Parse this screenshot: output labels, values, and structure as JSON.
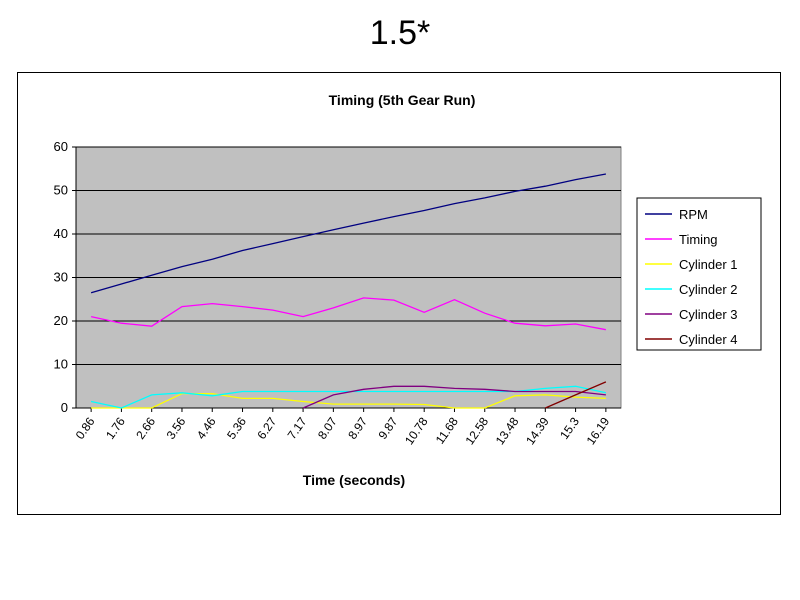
{
  "slide": {
    "title": "1.5*"
  },
  "chart_data": {
    "type": "line",
    "title": "Timing (5th Gear Run)",
    "xlabel": "Time (seconds)",
    "ylabel": "",
    "ylim": [
      0,
      60
    ],
    "yticks": [
      0,
      10,
      20,
      30,
      40,
      50,
      60
    ],
    "grid": true,
    "legend_position": "right",
    "plot_background": "#c0c0c0",
    "x": [
      "0.86",
      "1.76",
      "2.66",
      "3.56",
      "4.46",
      "5.36",
      "6.27",
      "7.17",
      "8.07",
      "8.97",
      "9.87",
      "10.78",
      "11.68",
      "12.58",
      "13.48",
      "14.39",
      "15.3",
      "16.19"
    ],
    "xtick_labels": [
      "0.86",
      "1.76",
      "2.66",
      "3.56",
      "4.46",
      "5.36",
      "6.27",
      "7.17",
      "8.07",
      "8.97",
      "9.87",
      "10.78",
      "11.68",
      "12.58",
      "13.48",
      "14.39",
      "15.3",
      "16.19"
    ],
    "series": [
      {
        "name": "RPM",
        "color": "#000080",
        "values": [
          26.5,
          28.5,
          30.5,
          32.5,
          34.2,
          36.2,
          37.8,
          39.4,
          41.0,
          42.5,
          44.0,
          45.4,
          47.0,
          48.3,
          49.8,
          51.0,
          52.5,
          53.8
        ]
      },
      {
        "name": "Timing",
        "color": "#ff00ff",
        "values": [
          21.0,
          19.5,
          18.8,
          23.3,
          24.0,
          23.3,
          22.5,
          21.0,
          23.0,
          25.3,
          24.8,
          22.0,
          24.9,
          21.8,
          19.5,
          18.9,
          19.3,
          18.0
        ]
      },
      {
        "name": "Cylinder 1",
        "color": "#ffff00",
        "values": [
          0,
          0,
          0,
          3.3,
          3.3,
          2.2,
          2.2,
          1.5,
          0.9,
          0.9,
          0.9,
          0.8,
          0,
          0,
          2.8,
          3.0,
          2.5,
          2.2
        ]
      },
      {
        "name": "Cylinder 2",
        "color": "#00ffff",
        "values": [
          1.5,
          0,
          3.0,
          3.5,
          2.8,
          3.8,
          3.8,
          3.8,
          3.8,
          3.8,
          3.8,
          3.8,
          3.8,
          3.8,
          3.8,
          4.5,
          5.0,
          3.5
        ]
      },
      {
        "name": "Cylinder 3",
        "color": "#800080",
        "values": [
          null,
          null,
          null,
          null,
          null,
          null,
          null,
          0,
          3.0,
          4.3,
          5.0,
          5.0,
          4.5,
          4.3,
          3.8,
          3.8,
          3.8,
          3.0
        ]
      },
      {
        "name": "Cylinder 4",
        "color": "#800000",
        "values": [
          null,
          null,
          null,
          null,
          null,
          null,
          null,
          null,
          null,
          null,
          null,
          null,
          null,
          null,
          null,
          0,
          3.0,
          6.0
        ]
      }
    ]
  }
}
